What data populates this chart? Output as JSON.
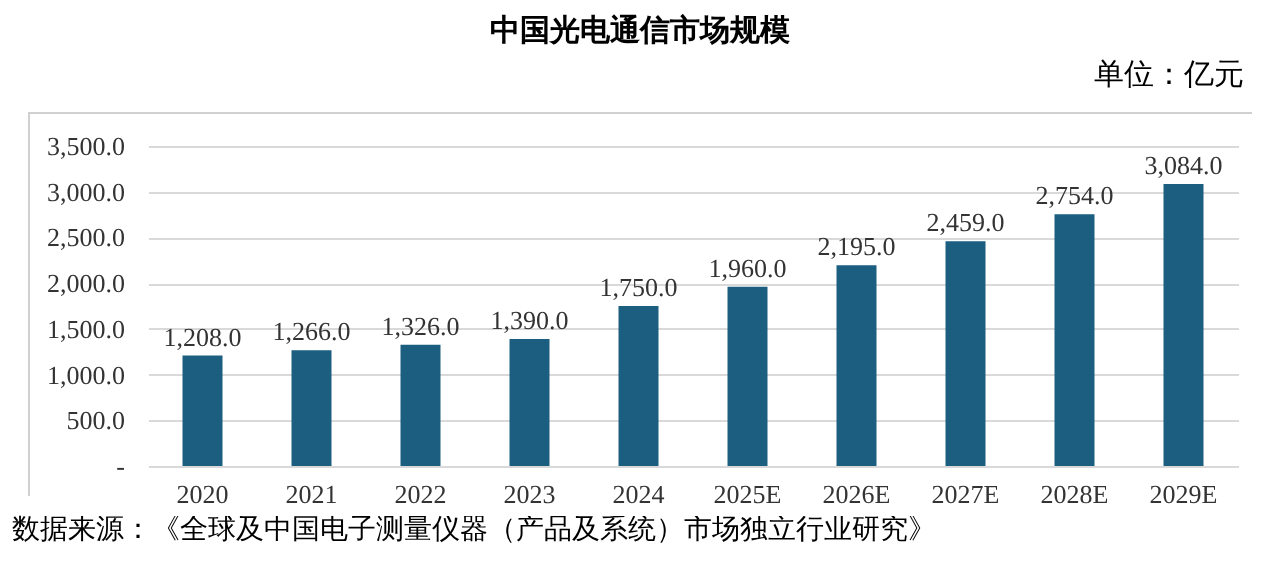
{
  "chart_data": {
    "type": "bar",
    "title": "中国光电通信市场规模",
    "ylabel": "单位：亿元",
    "categories": [
      "2020",
      "2021",
      "2022",
      "2023",
      "2024",
      "2025E",
      "2026E",
      "2027E",
      "2028E",
      "2029E"
    ],
    "values": [
      1208,
      1266,
      1326,
      1390,
      1750,
      1960,
      2195,
      2459,
      2754,
      3084
    ],
    "value_labels": [
      "1,208.0",
      "1,266.0",
      "1,326.0",
      "1,390.0",
      "1,750.0",
      "1,960.0",
      "2,195.0",
      "2,459.0",
      "2,754.0",
      "3,084.0"
    ],
    "color": "#1b5e80",
    "ylim": [
      0,
      3500
    ],
    "yticks": [
      {
        "value": 0,
        "label": "-"
      },
      {
        "value": 500,
        "label": "500.0"
      },
      {
        "value": 1000,
        "label": "1,000.0"
      },
      {
        "value": 1500,
        "label": "1,500.0"
      },
      {
        "value": 2000,
        "label": "2,000.0"
      },
      {
        "value": 2500,
        "label": "2,500.0"
      },
      {
        "value": 3000,
        "label": "3,000.0"
      },
      {
        "value": 3500,
        "label": "3,500.0"
      }
    ],
    "grid": "y",
    "annotations": [
      "数据来源：《全球及中国电子测量仪器（产品及系统）市场独立行业研究》"
    ]
  }
}
